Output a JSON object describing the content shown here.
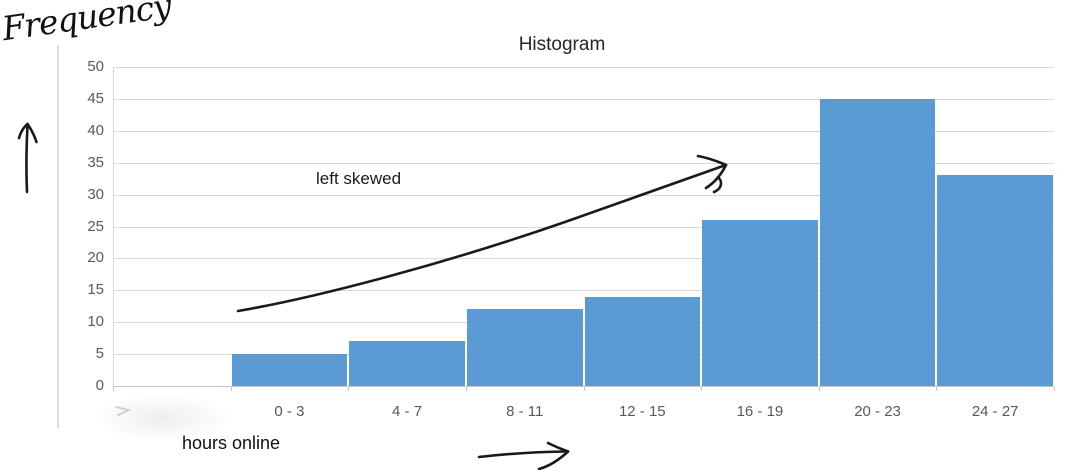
{
  "chart_data": {
    "type": "bar",
    "title": "Histogram",
    "categories": [
      "0 - 3",
      "4 - 7",
      "8 - 11",
      "12 - 15",
      "16 - 19",
      "20 - 23",
      "24 - 27"
    ],
    "values": [
      5,
      7,
      12,
      14,
      26,
      45,
      33
    ],
    "xlabel": "hours online",
    "ylabel": "Frequency",
    "ylim": [
      0,
      50
    ],
    "yticks": [
      0,
      5,
      10,
      15,
      20,
      25,
      30,
      35,
      40,
      45,
      50
    ],
    "grid": true,
    "legend": false,
    "bar_color": "#5b9bd5",
    "layout_note": "bars begin one empty category-slot right of the y-axis; adjacent bars touch (histogram style)"
  },
  "annotations": {
    "skew_label": "left skewed",
    "handwritten_marks": [
      "cursive Frequency label top-left",
      "hand-drawn up arrow along y-axis",
      "hand-drawn curved arrow rising toward tall bars",
      "hand-drawn right arrow along x-axis"
    ]
  },
  "colors": {
    "bar": "#5b9bd5",
    "gridline": "#d9d9d9",
    "axis": "#c6c6c6",
    "tick_text": "#595959",
    "title_text": "#262626",
    "ink": "#1a1a1a",
    "background": "#ffffff"
  }
}
